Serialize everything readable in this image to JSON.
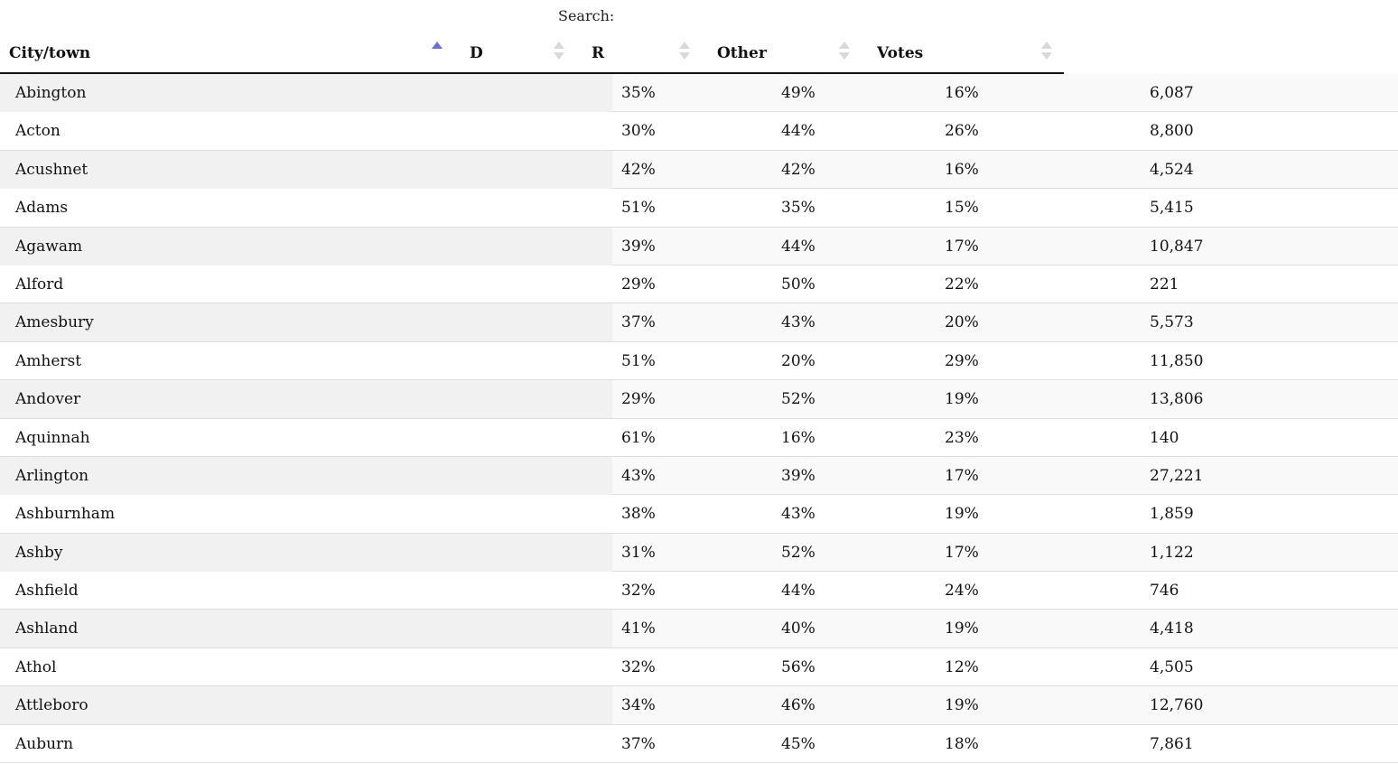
{
  "search": {
    "label": "Search:"
  },
  "columns": [
    "City/town",
    "D",
    "R",
    "Other",
    "Votes"
  ],
  "rows": [
    {
      "city": "Abington",
      "d": "35%",
      "r": "49%",
      "other": "16%",
      "votes": "6,087"
    },
    {
      "city": "Acton",
      "d": "30%",
      "r": "44%",
      "other": "26%",
      "votes": "8,800"
    },
    {
      "city": "Acushnet",
      "d": "42%",
      "r": "42%",
      "other": "16%",
      "votes": "4,524"
    },
    {
      "city": "Adams",
      "d": "51%",
      "r": "35%",
      "other": "15%",
      "votes": "5,415"
    },
    {
      "city": "Agawam",
      "d": "39%",
      "r": "44%",
      "other": "17%",
      "votes": "10,847"
    },
    {
      "city": "Alford",
      "d": "29%",
      "r": "50%",
      "other": "22%",
      "votes": "221"
    },
    {
      "city": "Amesbury",
      "d": "37%",
      "r": "43%",
      "other": "20%",
      "votes": "5,573"
    },
    {
      "city": "Amherst",
      "d": "51%",
      "r": "20%",
      "other": "29%",
      "votes": "11,850"
    },
    {
      "city": "Andover",
      "d": "29%",
      "r": "52%",
      "other": "19%",
      "votes": "13,806"
    },
    {
      "city": "Aquinnah",
      "d": "61%",
      "r": "16%",
      "other": "23%",
      "votes": "140"
    },
    {
      "city": "Arlington",
      "d": "43%",
      "r": "39%",
      "other": "17%",
      "votes": "27,221"
    },
    {
      "city": "Ashburnham",
      "d": "38%",
      "r": "43%",
      "other": "19%",
      "votes": "1,859"
    },
    {
      "city": "Ashby",
      "d": "31%",
      "r": "52%",
      "other": "17%",
      "votes": "1,122"
    },
    {
      "city": "Ashfield",
      "d": "32%",
      "r": "44%",
      "other": "24%",
      "votes": "746"
    },
    {
      "city": "Ashland",
      "d": "41%",
      "r": "40%",
      "other": "19%",
      "votes": "4,418"
    },
    {
      "city": "Athol",
      "d": "32%",
      "r": "56%",
      "other": "12%",
      "votes": "4,505"
    },
    {
      "city": "Attleboro",
      "d": "34%",
      "r": "46%",
      "other": "19%",
      "votes": "12,760"
    },
    {
      "city": "Auburn",
      "d": "37%",
      "r": "45%",
      "other": "18%",
      "votes": "7,861"
    }
  ],
  "sort": {
    "column": "City/town",
    "direction": "ascending"
  },
  "colors": {
    "sort_active": "#6b6fd6",
    "sort_inactive": "#d9d9d9"
  }
}
